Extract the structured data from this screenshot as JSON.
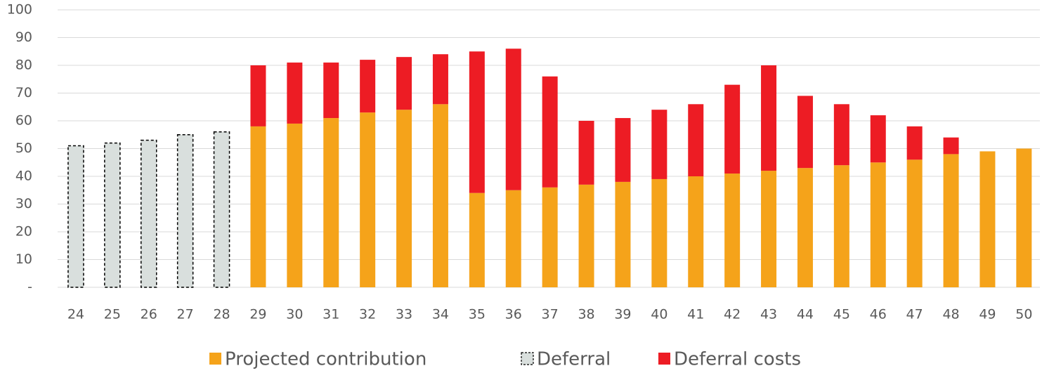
{
  "chart_data": {
    "type": "stacked_bar",
    "categories": [
      "24",
      "25",
      "26",
      "27",
      "28",
      "29",
      "30",
      "31",
      "32",
      "33",
      "34",
      "35",
      "36",
      "37",
      "38",
      "39",
      "40",
      "41",
      "42",
      "43",
      "44",
      "45",
      "46",
      "47",
      "48",
      "49",
      "50"
    ],
    "series": [
      {
        "name": "Deferral",
        "color": "#d9dfdd",
        "dashed": true,
        "values": [
          51,
          52,
          53,
          55,
          56,
          null,
          null,
          null,
          null,
          null,
          null,
          null,
          null,
          null,
          null,
          null,
          null,
          null,
          null,
          null,
          null,
          null,
          null,
          null,
          null,
          null,
          null
        ]
      },
      {
        "name": "Projected contribution",
        "color": "#f5a31a",
        "values": [
          null,
          null,
          null,
          null,
          null,
          58,
          59,
          61,
          63,
          64,
          66,
          34,
          35,
          36,
          37,
          38,
          39,
          40,
          41,
          42,
          43,
          44,
          45,
          46,
          48,
          49,
          50
        ]
      },
      {
        "name": "Deferral costs",
        "color": "#ed1c24",
        "values": [
          null,
          null,
          null,
          null,
          null,
          22,
          22,
          20,
          19,
          19,
          18,
          51,
          51,
          40,
          23,
          23,
          25,
          26,
          32,
          38,
          26,
          22,
          17,
          12,
          6,
          null,
          null
        ]
      }
    ],
    "legend_order": [
      1,
      0,
      2
    ],
    "ylim": [
      0,
      100
    ],
    "yticks": [
      {
        "value": 0,
        "label": "-"
      },
      10,
      20,
      30,
      40,
      50,
      60,
      70,
      80,
      90,
      100
    ],
    "grid": true,
    "legend": "bottom"
  }
}
